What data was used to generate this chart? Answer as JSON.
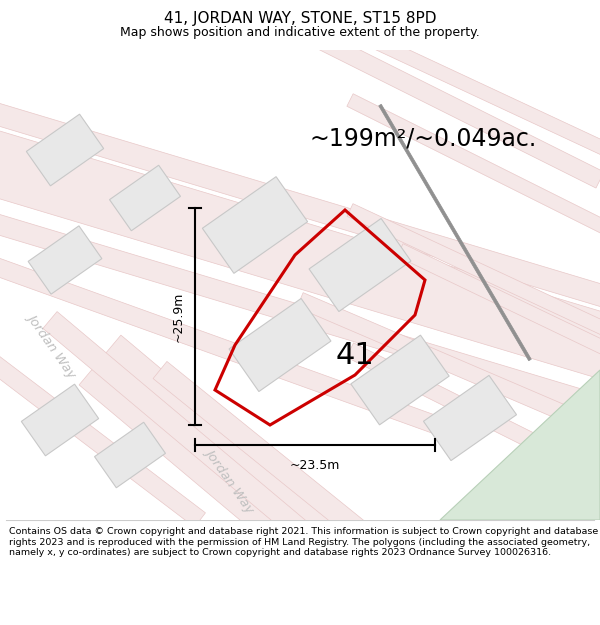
{
  "title": "41, JORDAN WAY, STONE, ST15 8PD",
  "subtitle": "Map shows position and indicative extent of the property.",
  "area_text": "~199m²/~0.049ac.",
  "label_41": "41",
  "dim_vertical": "~25.9m",
  "dim_horizontal": "~23.5m",
  "footer": "Contains OS data © Crown copyright and database right 2021. This information is subject to Crown copyright and database rights 2023 and is reproduced with the permission of HM Land Registry. The polygons (including the associated geometry, namely x, y co-ordinates) are subject to Crown copyright and database rights 2023 Ordnance Survey 100026316.",
  "bg_color": "#ffffff",
  "map_bg": "#f7f7f7",
  "road_fill": "#f5e8e8",
  "road_edge": "#e8c8c8",
  "building_fill": "#e8e8e8",
  "building_edge": "#c8c8c8",
  "red_plot_color": "#cc0000",
  "green_area_fill": "#d8e8d8",
  "green_area_edge": "#b8d0b8",
  "dark_line_color": "#888888",
  "jordan_way_color": "#c0c0c0",
  "title_fontsize": 11,
  "subtitle_fontsize": 9,
  "area_fontsize": 17,
  "footer_fontsize": 6.8,
  "dim_fontsize": 9
}
